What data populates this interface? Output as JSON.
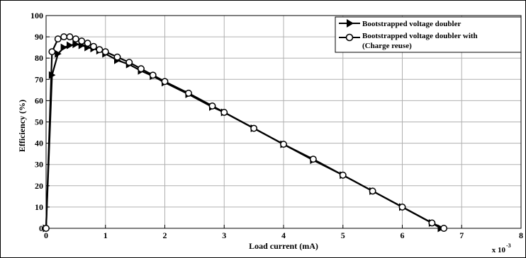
{
  "chart_data": {
    "type": "line",
    "xlabel": "Load current (mA)",
    "ylabel": "Efficiency (%)",
    "x_multiplier_base": "x 10",
    "x_multiplier_exp": "-3",
    "xlim": [
      0,
      8
    ],
    "ylim": [
      0,
      100
    ],
    "x_ticks": [
      "0",
      "1",
      "2",
      "3",
      "4",
      "5",
      "6",
      "7",
      "8"
    ],
    "y_ticks": [
      "0",
      "10",
      "20",
      "30",
      "40",
      "50",
      "60",
      "70",
      "80",
      "90",
      "100"
    ],
    "grid": true,
    "legend_position": "top-right",
    "legend": {
      "entry1": "Bootstrapped voltage doubler",
      "entry2_line1": "Bootstrapped voltage doubler with",
      "entry2_line2": "(Charge reuse)"
    },
    "series": [
      {
        "name": "Bootstrapped voltage doubler",
        "marker": "triangle-right",
        "color": "#000000",
        "x": [
          0,
          0.1,
          0.2,
          0.3,
          0.4,
          0.5,
          0.6,
          0.7,
          0.8,
          0.9,
          1.0,
          1.2,
          1.4,
          1.6,
          1.8,
          2.0,
          2.4,
          2.8,
          3.0,
          3.5,
          4.0,
          4.5,
          5.0,
          5.5,
          6.0,
          6.5,
          6.65
        ],
        "y": [
          0,
          72,
          82,
          85,
          86,
          86.5,
          86,
          85,
          84.5,
          83.5,
          82,
          79,
          77,
          74,
          71.5,
          68.5,
          63,
          57,
          54.5,
          47,
          39.5,
          32,
          25,
          17.5,
          10,
          2.5,
          0
        ]
      },
      {
        "name": "Bootstrapped voltage doubler with (Charge reuse)",
        "marker": "circle",
        "color": "#000000",
        "x": [
          0,
          0.1,
          0.2,
          0.3,
          0.4,
          0.5,
          0.6,
          0.7,
          0.8,
          0.9,
          1.0,
          1.2,
          1.4,
          1.6,
          1.8,
          2.0,
          2.4,
          2.8,
          3.0,
          3.5,
          4.0,
          4.5,
          5.0,
          5.5,
          6.0,
          6.5,
          6.7
        ],
        "y": [
          0,
          83,
          89,
          90,
          90,
          89,
          88,
          87,
          85.5,
          84,
          83,
          80.5,
          78,
          75,
          72,
          69,
          63.5,
          57.5,
          54.5,
          47,
          39.5,
          32.5,
          25,
          17.5,
          10,
          2.5,
          0
        ]
      }
    ]
  }
}
